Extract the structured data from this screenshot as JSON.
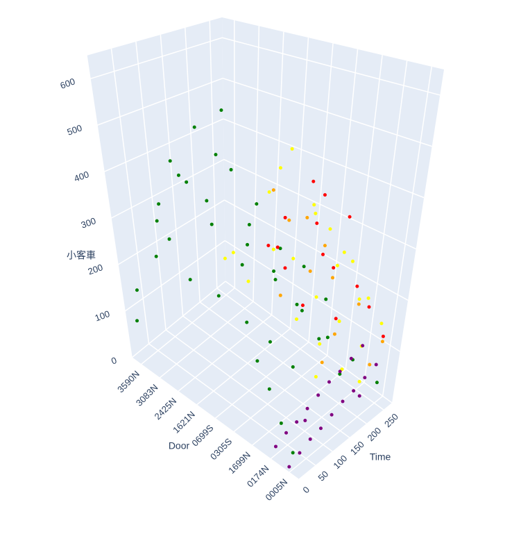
{
  "chart_data": {
    "type": "scatter3d",
    "x_label": "Time",
    "y_label": "Door",
    "z_label": "小客車",
    "xlim": [
      0,
      275
    ],
    "xticks": [
      0,
      50,
      100,
      150,
      200,
      250
    ],
    "y_categories": [
      "3590N",
      "3083N",
      "2425N",
      "1621N",
      "0699S",
      "0305S",
      "1699N",
      "0174N",
      "0005N"
    ],
    "zlim": [
      0,
      650
    ],
    "zticks": [
      0,
      100,
      200,
      300,
      400,
      500,
      600
    ],
    "series": [
      {
        "color": "#008000",
        "x": [
          5,
          15,
          25,
          35,
          45,
          55,
          65,
          75,
          85,
          95,
          105,
          115,
          125,
          135,
          145,
          155,
          165,
          175,
          185,
          195,
          205,
          215,
          225,
          235,
          245,
          255,
          10,
          30,
          50,
          70,
          90,
          110,
          130,
          150,
          170,
          190,
          210,
          230,
          250,
          60
        ],
        "y": [
          "3590N",
          "3590N",
          "3083N",
          "3083N",
          "2425N",
          "2425N",
          "1621N",
          "1621N",
          "0699S",
          "0699S",
          "0305S",
          "1699N",
          "3590N",
          "3083N",
          "2425N",
          "1621N",
          "0699S",
          "0305S",
          "1699N",
          "0174N",
          "3590N",
          "3083N",
          "2425N",
          "1621N",
          "0699S",
          "0305S",
          "0005N",
          "0174N",
          "1699N",
          "0305S",
          "3590N",
          "3083N",
          "2425N",
          "1621N",
          "0699S",
          "0305S",
          "1699N",
          "0174N",
          "0005N",
          "3083N"
        ],
        "z": [
          90,
          150,
          240,
          310,
          420,
          200,
          330,
          180,
          260,
          140,
          120,
          90,
          380,
          470,
          520,
          290,
          210,
          160,
          110,
          60,
          250,
          340,
          280,
          200,
          180,
          130,
          30,
          50,
          80,
          100,
          300,
          360,
          430,
          250,
          190,
          140,
          100,
          70,
          40,
          260
        ]
      },
      {
        "color": "#ffff00",
        "x": [
          100,
          110,
          120,
          130,
          140,
          150,
          160,
          170,
          180,
          190,
          200,
          210,
          220,
          230,
          240,
          250,
          260,
          115,
          145,
          175,
          205,
          235,
          255,
          125,
          195
        ],
        "y": [
          "0699S",
          "0305S",
          "1699N",
          "0174N",
          "0005N",
          "0699S",
          "0305S",
          "1699N",
          "0174N",
          "0005N",
          "0699S",
          "0305S",
          "1699N",
          "0174N",
          "0005N",
          "0305S",
          "1699N",
          "1621N",
          "2425N",
          "0699S",
          "0305S",
          "1699N",
          "0174N",
          "0174N",
          "0005N"
        ],
        "z": [
          220,
          300,
          180,
          150,
          120,
          380,
          260,
          200,
          170,
          140,
          450,
          330,
          240,
          190,
          160,
          280,
          230,
          250,
          200,
          420,
          350,
          260,
          180,
          90,
          70
        ]
      },
      {
        "color": "#ffa500",
        "x": [
          130,
          150,
          170,
          190,
          210,
          230,
          250,
          160,
          200,
          240,
          140,
          220
        ],
        "y": [
          "0305S",
          "1699N",
          "0174N",
          "0305S",
          "1699N",
          "0174N",
          "0005N",
          "0699S",
          "0699S",
          "0305S",
          "0174N",
          "0005N"
        ],
        "z": [
          200,
          260,
          150,
          330,
          220,
          180,
          120,
          380,
          300,
          250,
          110,
          90
        ]
      },
      {
        "color": "#ff0000",
        "x": [
          120,
          140,
          160,
          180,
          200,
          220,
          240,
          260,
          150,
          190,
          230,
          170,
          210,
          250,
          135
        ],
        "y": [
          "0305S",
          "0305S",
          "1699N",
          "1699N",
          "0305S",
          "0174N",
          "1699N",
          "0174N",
          "0699S",
          "0699S",
          "0305S",
          "0174N",
          "1699N",
          "0005N",
          "1699N"
        ],
        "z": [
          300,
          250,
          350,
          280,
          400,
          220,
          330,
          160,
          270,
          310,
          360,
          180,
          240,
          130,
          200
        ]
      },
      {
        "color": "#800080",
        "x": [
          0,
          15,
          30,
          45,
          60,
          75,
          90,
          105,
          120,
          135,
          150,
          165,
          180,
          195,
          210,
          225,
          240,
          255,
          100,
          200
        ],
        "y": [
          "0005N",
          "0174N",
          "0005N",
          "0174N",
          "0005N",
          "0174N",
          "0005N",
          "0174N",
          "0005N",
          "0174N",
          "0005N",
          "0174N",
          "0005N",
          "0174N",
          "0005N",
          "0174N",
          "0005N",
          "0174N",
          "0174N",
          "0005N"
        ],
        "z": [
          10,
          15,
          20,
          25,
          30,
          30,
          35,
          40,
          45,
          50,
          55,
          60,
          60,
          65,
          70,
          75,
          80,
          85,
          20,
          40
        ]
      }
    ]
  }
}
